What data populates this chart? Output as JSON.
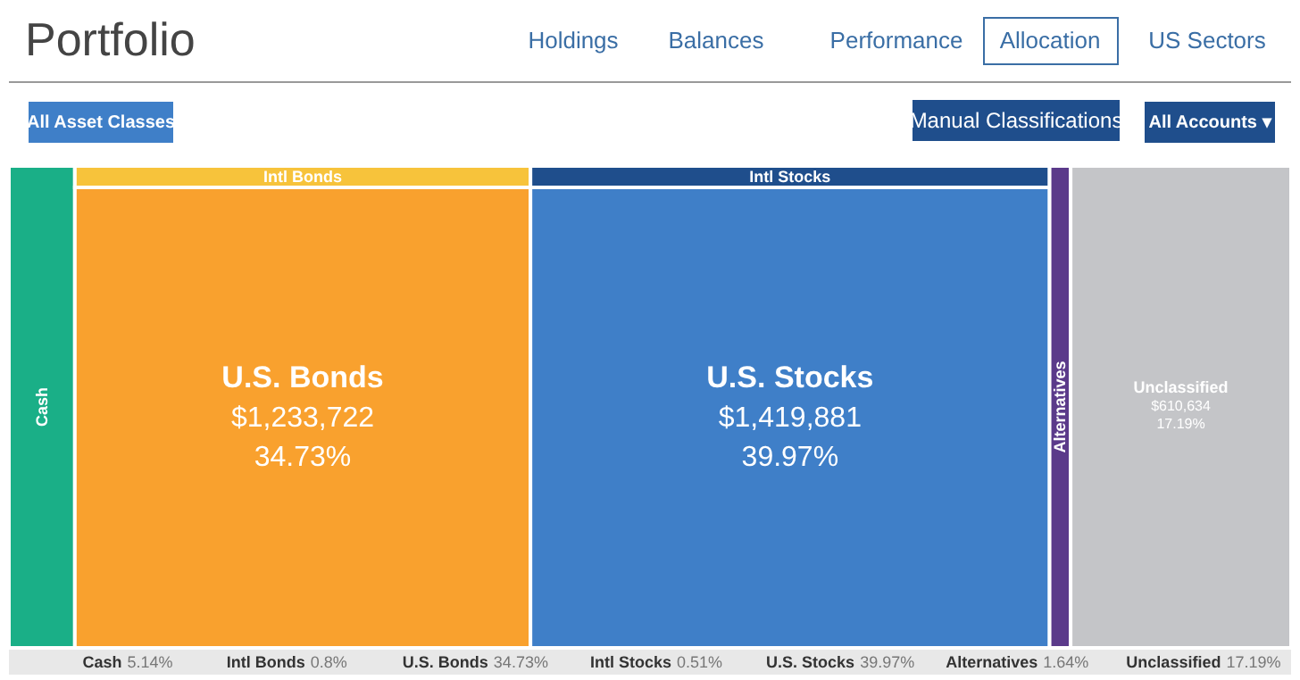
{
  "chart_data": {
    "type": "other",
    "title": "Portfolio",
    "categories": [
      "Cash",
      "Intl Bonds",
      "U.S. Bonds",
      "Intl Stocks",
      "U.S. Stocks",
      "Alternatives",
      "Unclassified"
    ],
    "values": [
      5.14,
      0.8,
      34.73,
      0.51,
      39.97,
      1.64,
      17.19
    ],
    "colors": [
      "#1aaf87",
      "#f7c33b",
      "#f9a12e",
      "#1f4e8c",
      "#3f7fc8",
      "#5b3a8a",
      "#c4c5c8"
    ],
    "value_labels": [
      "5.14%",
      "0.8%",
      "34.73%",
      "0.51%",
      "39.97%",
      "1.64%",
      "17.19%"
    ],
    "annotations": [
      "Holdings",
      "Balances",
      "Performance",
      "Allocation",
      "US Sectors",
      "All Asset Classes",
      "Manual Classifications",
      "All Accounts ▾",
      {
        "text": "$1,233,722",
        "x": "U.S. Bonds"
      },
      {
        "text": "$1,419,881",
        "x": "U.S. Stocks"
      },
      {
        "text": "$610,634",
        "x": "Unclassified"
      }
    ]
  }
}
